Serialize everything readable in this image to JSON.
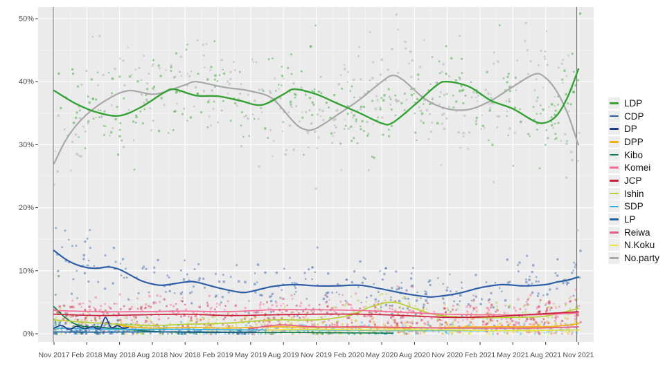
{
  "chart_data": {
    "type": "scatter",
    "subtype": "jittered poll points with smoothed trend lines per party",
    "title": "",
    "xlabel": "",
    "ylabel": "",
    "grid": "white major and minor gridlines on gray panel",
    "panel_background": "#ebebeb",
    "gridline_color": "#ffffff",
    "axis_text_color": "#4d4d4d",
    "tick_mark_color": "#333333",
    "reference_vline_color": "#5f5f5f",
    "reference_vlines_months": [
      -0.06,
      47.85
    ],
    "legend_position": "right",
    "x_axis": {
      "unit_note": "months indexed from Nov 2017",
      "tick_months": [
        0,
        3,
        6,
        9,
        12,
        15,
        18,
        21,
        24,
        27,
        30,
        33,
        36,
        39,
        42,
        45,
        48
      ],
      "tick_labels": [
        "Nov 2017",
        "Feb 2018",
        "May 2018",
        "Aug 2018",
        "Nov 2018",
        "Feb 2019",
        "May 2019",
        "Aug 2019",
        "Nov 2019",
        "Feb 2020",
        "May 2020",
        "Aug 2020",
        "Nov 2020",
        "Feb 2021",
        "May 2021",
        "Aug 2021",
        "Nov 2021"
      ]
    },
    "y_axis": {
      "tick_values": [
        0,
        10,
        20,
        30,
        40,
        50
      ],
      "tick_labels": [
        "0%",
        "10%",
        "20%",
        "30%",
        "40%",
        "50%"
      ],
      "range": [
        -1.3,
        51.9
      ]
    },
    "line_draw_order": [
      "No.party",
      "Kibo",
      "LP",
      "SDP",
      "N.Koku",
      "DPP",
      "Ishin",
      "Reiwa",
      "DP",
      "Komei",
      "JCP",
      "CDP",
      "LDP"
    ],
    "series": [
      {
        "name": "LDP",
        "color": "#33a133",
        "line_width": 2.4,
        "line_points": [
          [
            0,
            38.6
          ],
          [
            2,
            36.5
          ],
          [
            4,
            35.1
          ],
          [
            6,
            34.6
          ],
          [
            8,
            36.0
          ],
          [
            10,
            38.2
          ],
          [
            11,
            38.8
          ],
          [
            13,
            37.8
          ],
          [
            15,
            37.7
          ],
          [
            17,
            37.0
          ],
          [
            19,
            36.3
          ],
          [
            21,
            38.0
          ],
          [
            22,
            38.8
          ],
          [
            24,
            38.0
          ],
          [
            26,
            36.5
          ],
          [
            28,
            35.0
          ],
          [
            30,
            33.4
          ],
          [
            31,
            33.5
          ],
          [
            33,
            36.3
          ],
          [
            35,
            39.4
          ],
          [
            36,
            40.0
          ],
          [
            38,
            39.2
          ],
          [
            40,
            37.0
          ],
          [
            42,
            35.7
          ],
          [
            44,
            33.7
          ],
          [
            45,
            33.5
          ],
          [
            46,
            34.6
          ],
          [
            47,
            37.5
          ],
          [
            48,
            42.0
          ]
        ],
        "scatter": {
          "points": 330,
          "spread": 3.6,
          "x_range": [
            0,
            48.2
          ]
        }
      },
      {
        "name": "CDP",
        "color": "#2e5ea6",
        "line_width": 2.2,
        "line_points": [
          [
            0,
            13.2
          ],
          [
            1,
            11.9
          ],
          [
            2,
            11.0
          ],
          [
            3,
            10.5
          ],
          [
            4,
            10.4
          ],
          [
            5,
            10.6
          ],
          [
            6,
            10.2
          ],
          [
            7,
            9.3
          ],
          [
            8,
            8.4
          ],
          [
            9,
            7.9
          ],
          [
            10,
            7.7
          ],
          [
            12,
            8.2
          ],
          [
            13,
            8.2
          ],
          [
            15,
            7.3
          ],
          [
            17,
            6.6
          ],
          [
            18,
            6.7
          ],
          [
            20,
            7.5
          ],
          [
            22,
            7.8
          ],
          [
            24,
            7.6
          ],
          [
            26,
            7.6
          ],
          [
            28,
            7.7
          ],
          [
            30,
            7.1
          ],
          [
            32,
            6.4
          ],
          [
            34,
            5.9
          ],
          [
            35,
            5.9
          ],
          [
            37,
            6.4
          ],
          [
            39,
            7.3
          ],
          [
            41,
            7.8
          ],
          [
            43,
            7.6
          ],
          [
            45,
            7.8
          ],
          [
            46,
            8.2
          ],
          [
            47,
            8.5
          ],
          [
            48,
            9.0
          ]
        ],
        "scatter": {
          "points": 300,
          "spread": 2.1,
          "x_range": [
            0,
            48.2
          ]
        }
      },
      {
        "name": "DP",
        "color": "#20398c",
        "line_width": 1.7,
        "line_points": [
          [
            0,
            0.9
          ],
          [
            0.7,
            1.3
          ],
          [
            1.4,
            0.7
          ],
          [
            2.1,
            1.2
          ],
          [
            2.8,
            0.8
          ],
          [
            3.5,
            1.1
          ],
          [
            4.2,
            0.8
          ],
          [
            4.7,
            2.6
          ],
          [
            5.2,
            1.0
          ],
          [
            5.8,
            1.3
          ],
          [
            6.3,
            0.9
          ],
          [
            6.8,
            1.0
          ]
        ],
        "scatter": {
          "points": 50,
          "spread": 0.5,
          "x_range": [
            0,
            6.8
          ]
        }
      },
      {
        "name": "DPP",
        "color": "#f0b418",
        "line_width": 1.7,
        "line_points": [
          [
            5.8,
            1.4
          ],
          [
            7,
            1.1
          ],
          [
            9,
            0.9
          ],
          [
            12,
            1.0
          ],
          [
            16,
            0.9
          ],
          [
            20,
            1.1
          ],
          [
            24,
            1.0
          ],
          [
            28,
            1.0
          ],
          [
            32,
            0.9
          ],
          [
            36,
            1.0
          ],
          [
            40,
            1.1
          ],
          [
            44,
            1.1
          ],
          [
            46,
            1.2
          ],
          [
            48,
            1.6
          ]
        ],
        "scatter": {
          "points": 200,
          "spread": 0.7,
          "x_range": [
            5.8,
            48.2
          ]
        }
      },
      {
        "name": "Kibo",
        "color": "#0f7a4e",
        "line_width": 1.7,
        "line_points": [
          [
            0,
            4.3
          ],
          [
            1,
            2.6
          ],
          [
            2,
            1.5
          ],
          [
            3,
            1.1
          ],
          [
            4,
            1.1
          ],
          [
            5,
            0.9
          ],
          [
            6,
            0.8
          ],
          [
            8,
            0.5
          ],
          [
            10,
            0.3
          ],
          [
            14,
            0.2
          ],
          [
            18,
            0.2
          ],
          [
            22,
            0.2
          ],
          [
            26,
            0.15
          ],
          [
            31,
            0.1
          ]
        ],
        "scatter": {
          "points": 90,
          "spread": 0.9,
          "proportional": true,
          "x_range": [
            0,
            31
          ]
        }
      },
      {
        "name": "Komei",
        "color": "#f46a95",
        "line_width": 1.7,
        "line_points": [
          [
            0,
            3.7
          ],
          [
            4,
            3.5
          ],
          [
            8,
            3.5
          ],
          [
            12,
            3.6
          ],
          [
            16,
            3.5
          ],
          [
            20,
            3.8
          ],
          [
            24,
            3.8
          ],
          [
            28,
            3.7
          ],
          [
            32,
            3.4
          ],
          [
            36,
            3.1
          ],
          [
            40,
            3.0
          ],
          [
            44,
            3.0
          ],
          [
            48,
            3.3
          ]
        ],
        "scatter": {
          "points": 290,
          "spread": 1.35,
          "x_range": [
            0,
            48.2
          ]
        }
      },
      {
        "name": "JCP",
        "color": "#c81e3c",
        "line_width": 1.7,
        "line_points": [
          [
            0,
            3.1
          ],
          [
            4,
            2.9
          ],
          [
            8,
            3.0
          ],
          [
            12,
            3.1
          ],
          [
            16,
            2.9
          ],
          [
            20,
            3.0
          ],
          [
            24,
            3.1
          ],
          [
            28,
            3.1
          ],
          [
            32,
            2.9
          ],
          [
            36,
            2.6
          ],
          [
            40,
            2.7
          ],
          [
            44,
            3.1
          ],
          [
            48,
            3.5
          ]
        ],
        "scatter": {
          "points": 290,
          "spread": 1.15,
          "x_range": [
            0,
            48.2
          ]
        }
      },
      {
        "name": "Ishin",
        "color": "#b8cf32",
        "line_width": 1.7,
        "line_points": [
          [
            0,
            2.2
          ],
          [
            3,
            1.8
          ],
          [
            6,
            1.5
          ],
          [
            9,
            1.3
          ],
          [
            12,
            1.5
          ],
          [
            16,
            1.7
          ],
          [
            20,
            2.2
          ],
          [
            24,
            2.2
          ],
          [
            27,
            2.9
          ],
          [
            29,
            4.3
          ],
          [
            31,
            5.0
          ],
          [
            33,
            4.0
          ],
          [
            35,
            3.0
          ],
          [
            38,
            2.6
          ],
          [
            42,
            2.6
          ],
          [
            45,
            2.8
          ],
          [
            48,
            4.0
          ]
        ],
        "scatter": {
          "points": 240,
          "spread": 1.1,
          "x_range": [
            0,
            48.2
          ]
        }
      },
      {
        "name": "SDP",
        "color": "#35afe3",
        "line_width": 1.7,
        "line_points": [
          [
            0,
            0.9
          ],
          [
            6,
            0.7
          ],
          [
            12,
            0.7
          ],
          [
            18,
            0.6
          ],
          [
            24,
            0.6
          ],
          [
            30,
            0.5
          ],
          [
            36,
            0.5
          ],
          [
            42,
            0.5
          ],
          [
            48,
            0.6
          ]
        ],
        "scatter": {
          "points": 200,
          "spread": 0.55,
          "x_range": [
            0,
            48.2
          ]
        }
      },
      {
        "name": "LP",
        "color": "#1d5e9b",
        "line_width": 1.7,
        "line_points": [
          [
            0,
            0.3
          ],
          [
            4,
            0.25
          ],
          [
            8,
            0.3
          ],
          [
            12,
            0.3
          ],
          [
            16,
            0.25
          ],
          [
            18.5,
            0.3
          ]
        ],
        "scatter": {
          "points": 90,
          "spread": 0.35,
          "x_range": [
            0,
            18.5
          ]
        }
      },
      {
        "name": "Reiwa",
        "color": "#e05c88",
        "line_width": 1.7,
        "line_points": [
          [
            17.8,
            0.8
          ],
          [
            20,
            1.3
          ],
          [
            21,
            1.4
          ],
          [
            24,
            1.1
          ],
          [
            28,
            1.1
          ],
          [
            32,
            1.0
          ],
          [
            36,
            0.9
          ],
          [
            40,
            0.9
          ],
          [
            44,
            0.9
          ],
          [
            48,
            1.1
          ]
        ],
        "scatter": {
          "points": 150,
          "spread": 0.65,
          "x_range": [
            17.8,
            48.2
          ]
        }
      },
      {
        "name": "N.Koku",
        "color": "#eae63d",
        "line_width": 1.7,
        "line_points": [
          [
            19.5,
            0.6
          ],
          [
            24,
            0.7
          ],
          [
            28,
            0.6
          ],
          [
            32,
            0.6
          ],
          [
            36,
            0.6
          ],
          [
            40,
            0.5
          ],
          [
            44,
            0.5
          ],
          [
            48,
            0.6
          ]
        ],
        "scatter": {
          "points": 130,
          "spread": 0.45,
          "x_range": [
            19.5,
            48.2
          ]
        }
      },
      {
        "name": "No.party",
        "color": "#a8a8a8",
        "line_width": 2.2,
        "line_points": [
          [
            0,
            27.0
          ],
          [
            1,
            30.5
          ],
          [
            2,
            33.0
          ],
          [
            3,
            34.8
          ],
          [
            4,
            36.2
          ],
          [
            5,
            37.3
          ],
          [
            6,
            38.2
          ],
          [
            7,
            38.6
          ],
          [
            8,
            38.3
          ],
          [
            9,
            38.0
          ],
          [
            10,
            38.3
          ],
          [
            12,
            39.5
          ],
          [
            13,
            40.0
          ],
          [
            15,
            39.3
          ],
          [
            16,
            39.0
          ],
          [
            18,
            38.5
          ],
          [
            20,
            37.3
          ],
          [
            22,
            33.5
          ],
          [
            23,
            32.4
          ],
          [
            24,
            32.6
          ],
          [
            26,
            34.8
          ],
          [
            28,
            37.2
          ],
          [
            30,
            40.0
          ],
          [
            31,
            41.0
          ],
          [
            32,
            40.2
          ],
          [
            34,
            37.2
          ],
          [
            36,
            35.7
          ],
          [
            38,
            35.6
          ],
          [
            40,
            37.0
          ],
          [
            42,
            39.2
          ],
          [
            44,
            41.2
          ],
          [
            45,
            40.6
          ],
          [
            46,
            38.5
          ],
          [
            47,
            35.0
          ],
          [
            48,
            30.0
          ]
        ],
        "scatter": {
          "points": 330,
          "spread": 4.2,
          "x_range": [
            0,
            48.2
          ]
        }
      }
    ]
  },
  "legend": {
    "items": [
      "LDP",
      "CDP",
      "DP",
      "DPP",
      "Kibo",
      "Komei",
      "JCP",
      "Ishin",
      "SDP",
      "LP",
      "Reiwa",
      "N.Koku",
      "No.party"
    ]
  }
}
